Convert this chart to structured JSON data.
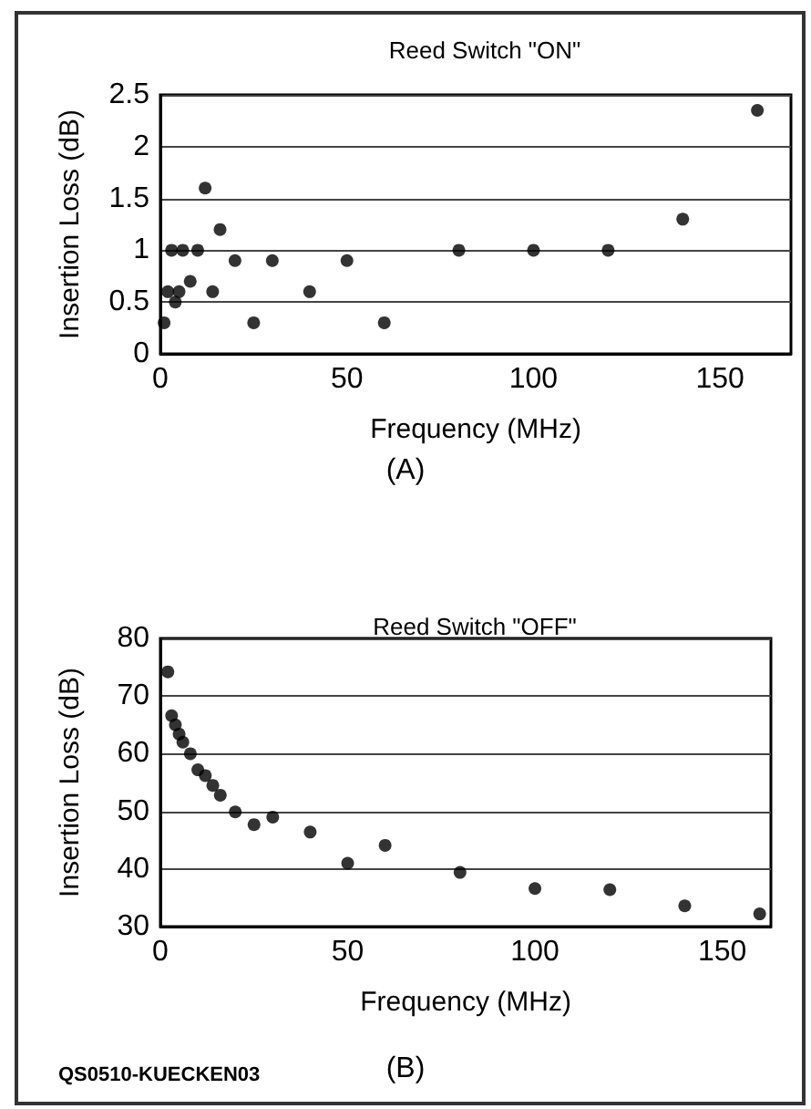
{
  "chart_data": [
    {
      "type": "scatter",
      "title": "Reed Switch \"ON\"",
      "xlabel": "Frequency (MHz)",
      "ylabel": "Insertion Loss (dB)",
      "annotations": [
        "(A)"
      ],
      "x": [
        1,
        2,
        3,
        4,
        5,
        6,
        8,
        10,
        12,
        14,
        16,
        20,
        25,
        30,
        40,
        50,
        60,
        80,
        100,
        120,
        140,
        160
      ],
      "values": [
        0.3,
        0.6,
        1.0,
        0.5,
        0.6,
        1.0,
        0.7,
        1.0,
        1.6,
        0.6,
        1.2,
        0.9,
        0.3,
        0.9,
        0.6,
        0.9,
        0.3,
        1.0,
        1.0,
        1.0,
        1.3,
        2.35
      ],
      "color": "#000000",
      "xlim": [
        0,
        169
      ],
      "xticks": [
        0,
        50,
        100,
        150
      ],
      "ylim": [
        0,
        2.5
      ],
      "yticks": [
        0,
        0.5,
        1,
        1.5,
        2,
        2.5
      ],
      "grid": "y",
      "marker": "circle"
    },
    {
      "type": "scatter",
      "title": "Reed Switch \"OFF\"",
      "xlabel": "Frequency (MHz)",
      "ylabel": "Insertion Loss (dB)",
      "annotations": [
        "(B)",
        "QS0510-KUECKEN03"
      ],
      "x": [
        2,
        3,
        4,
        5,
        6,
        8,
        10,
        12,
        14,
        16,
        20,
        25,
        30,
        40,
        50,
        60,
        80,
        100,
        120,
        140,
        160
      ],
      "values": [
        74.2,
        66.6,
        65,
        63.4,
        62,
        60,
        57.2,
        56.2,
        54.5,
        52.8,
        49.9,
        47.7,
        49,
        46.4,
        41,
        44.1,
        39.4,
        36.6,
        36.4,
        33.6,
        32.2
      ],
      "color": "#000000",
      "xlim": [
        0,
        163
      ],
      "xticks": [
        0,
        50,
        100,
        150
      ],
      "ylim": [
        30,
        80
      ],
      "yticks": [
        30,
        40,
        50,
        60,
        70,
        80
      ],
      "grid": "y",
      "marker": "circle"
    }
  ]
}
